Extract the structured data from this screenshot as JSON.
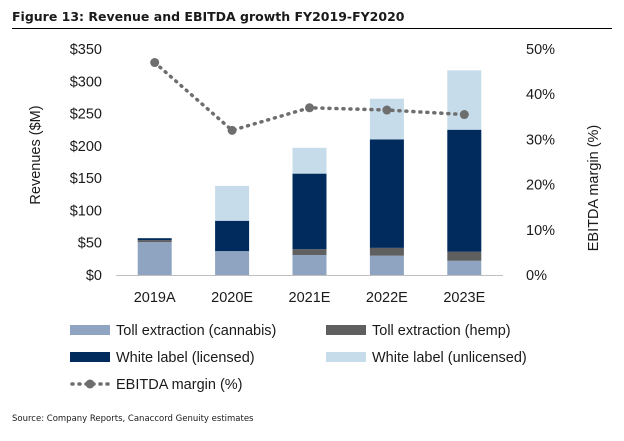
{
  "figure_title": "Figure 13: Revenue and EBITDA growth FY2019-FY2020",
  "source_note": "Source: Company Reports, Canaccord Genuity estimates",
  "colors": {
    "toll_cannabis": "#8fa4c0",
    "toll_hemp": "#5f5f5f",
    "white_licensed": "#002b5c",
    "white_unlicensed": "#c6dcea",
    "ebitda": "#6e6e6e"
  },
  "chart_data": {
    "type": "bar",
    "stacked": true,
    "categories": [
      "2019A",
      "2020E",
      "2021E",
      "2022E",
      "2023E"
    ],
    "ylabel": "Revenues ($M)",
    "y2label": "EBITDA margin (%)",
    "ylim": [
      0,
      350
    ],
    "y2lim": [
      0,
      0.5
    ],
    "yticks": [
      "$0",
      "$50",
      "$100",
      "$150",
      "$200",
      "$250",
      "$300",
      "$350"
    ],
    "y2ticks": [
      "0%",
      "10%",
      "20%",
      "30%",
      "40%",
      "50%"
    ],
    "series": [
      {
        "name": "Toll extraction (cannabis)",
        "values": [
          51,
          37,
          31,
          30,
          22
        ],
        "color": "#8fa4c0"
      },
      {
        "name": "Toll extraction (hemp)",
        "values": [
          3,
          0,
          9,
          12,
          14
        ],
        "color": "#5f5f5f"
      },
      {
        "name": "White label (licensed)",
        "values": [
          3,
          47,
          117,
          168,
          189
        ],
        "color": "#002b5c"
      },
      {
        "name": "White label (unlicensed)",
        "values": [
          0,
          54,
          40,
          63,
          92
        ],
        "color": "#c6dcea"
      }
    ],
    "line_series": {
      "name": "EBITDA margin (%)",
      "values": [
        0.47,
        0.32,
        0.37,
        0.365,
        0.355
      ],
      "axis": "right",
      "style": "dotted"
    },
    "legend_position": "bottom",
    "grid": false
  }
}
